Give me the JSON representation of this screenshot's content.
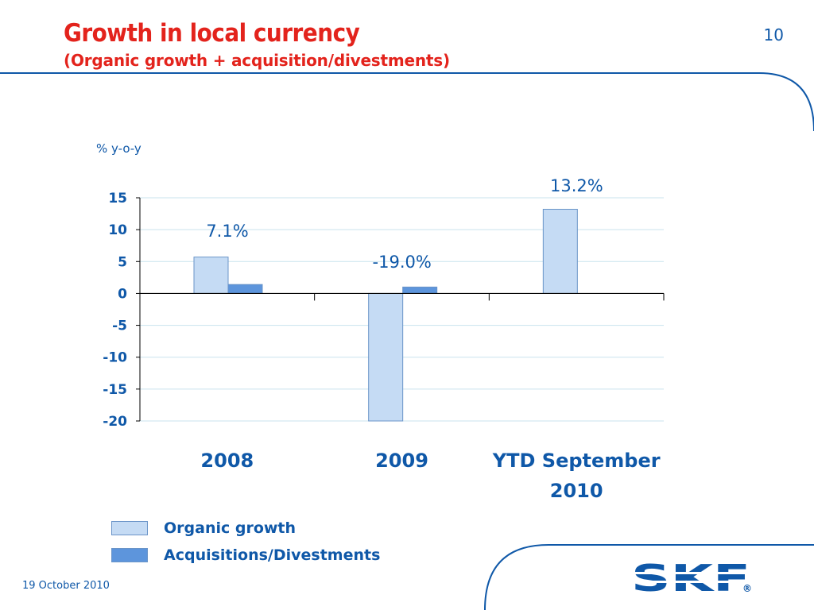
{
  "slide": {
    "title": "Growth in local currency",
    "subtitle": "(Organic growth + acquisition/divestments)",
    "page_number": "10",
    "date": "19 October 2010",
    "logo_text": "SKF",
    "registered_mark": "®"
  },
  "colors": {
    "title": "#e3231c",
    "accent": "#0f58a8",
    "organic": "#c5dbf4",
    "acquisitions": "#5d95dc",
    "bar_border": "#6a94c8",
    "grid": "#c9e3ee"
  },
  "chart_data": {
    "type": "bar",
    "ylabel": "% y-o-y",
    "ylim": [
      -20,
      15
    ],
    "yticks": [
      15,
      10,
      5,
      0,
      -5,
      -10,
      -15,
      -20
    ],
    "grid": true,
    "categories": [
      "2008",
      "2009",
      "YTD September 2010"
    ],
    "category_lines": [
      [
        "2008"
      ],
      [
        "2009"
      ],
      [
        "YTD September",
        "2010"
      ]
    ],
    "series": [
      {
        "name": "Organic growth",
        "values": [
          5.7,
          -20.0,
          13.2
        ]
      },
      {
        "name": "Acquisitions/Divestments",
        "values": [
          1.4,
          1.0,
          0
        ]
      }
    ],
    "total_labels": [
      "7.1%",
      "-19.0%",
      "13.2%"
    ],
    "legend_position": "bottom-left"
  }
}
